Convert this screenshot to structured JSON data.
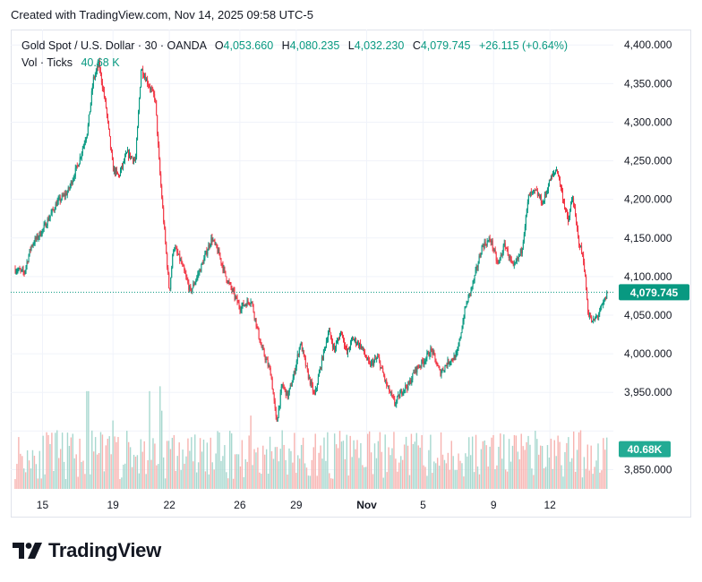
{
  "caption": "Created with TradingView.com, Nov 14, 2025 09:58 UTC-5",
  "legend": {
    "symbol": "Gold Spot / U.S. Dollar · 30 · OANDA",
    "open_label": "O",
    "open": "4,053.660",
    "high_label": "H",
    "high": "4,080.235",
    "low_label": "L",
    "low": "4,032.230",
    "close_label": "C",
    "close": "4,079.745",
    "change": "+26.115 (+0.64%)",
    "vol_label": "Vol · Ticks",
    "vol_value": "40.68 K"
  },
  "brand": {
    "name": "TradingView",
    "logo_icon": "tradingview-logo-icon"
  },
  "colors": {
    "up": "#089981",
    "down": "#f23645",
    "vol_up": "#a7d8cf",
    "vol_down": "#f7b3b0",
    "last_price_line": "#089981"
  },
  "chart_data": {
    "type": "candlestick",
    "instrument": "Gold Spot / U.S. Dollar",
    "timeframe": "30",
    "exchange": "OANDA",
    "y_axis": {
      "ylim": [
        3825,
        4420
      ],
      "ticks": [
        3850,
        3900,
        3950,
        4000,
        4050,
        4100,
        4150,
        4200,
        4250,
        4300,
        4350,
        4400
      ],
      "tick_labels": [
        "3,850.000",
        "",
        "3,950.000",
        "4,000.000",
        "4,050.000",
        "4,100.000",
        "4,150.000",
        "4,200.000",
        "4,250.000",
        "4,300.000",
        "4,350.000",
        "4,400.000"
      ]
    },
    "x_axis": {
      "tick_labels": [
        "15",
        "19",
        "22",
        "26",
        "29",
        "Nov",
        "5",
        "9",
        "12"
      ],
      "tick_positions": [
        2.0,
        7.0,
        11.0,
        16.0,
        20.0,
        25.0,
        29.0,
        34.0,
        38.0
      ],
      "bold": [
        "Nov"
      ],
      "range": [
        0,
        42.5
      ]
    },
    "price_path": {
      "t": [
        0,
        0.7,
        1.2,
        2.0,
        3.0,
        3.8,
        4.6,
        5.2,
        5.6,
        6.0,
        6.5,
        7.0,
        7.4,
        8.0,
        8.6,
        9.0,
        9.5,
        10.0,
        10.3,
        10.6,
        11.0,
        11.3,
        11.8,
        12.5,
        13.2,
        14.0,
        14.5,
        15.0,
        16.0,
        16.8,
        17.5,
        18.2,
        18.6,
        19.0,
        19.4,
        19.8,
        20.3,
        20.8,
        21.3,
        21.8,
        22.3,
        22.7,
        23.2,
        23.6,
        24.0,
        24.6,
        25.2,
        25.8,
        26.4,
        27.0,
        27.6,
        28.0,
        28.4,
        29.0,
        29.6,
        30.2,
        30.8,
        31.4,
        32.0,
        32.6,
        33.2,
        33.8,
        34.3,
        34.8,
        35.4,
        36.0,
        36.5,
        37.0,
        37.5,
        38.0,
        38.5,
        39.0,
        39.3,
        39.6,
        40.0,
        40.4,
        40.7,
        41.0,
        41.4,
        41.8,
        42.1
      ],
      "price": [
        4110,
        4105,
        4140,
        4160,
        4195,
        4210,
        4250,
        4290,
        4355,
        4375,
        4320,
        4240,
        4230,
        4260,
        4250,
        4370,
        4350,
        4330,
        4240,
        4170,
        4080,
        4140,
        4120,
        4080,
        4110,
        4150,
        4130,
        4100,
        4060,
        4070,
        4010,
        3975,
        3910,
        3960,
        3945,
        3970,
        4015,
        3975,
        3945,
        3990,
        4030,
        4005,
        4030,
        4000,
        4020,
        4010,
        3985,
        3995,
        3960,
        3935,
        3955,
        3960,
        3978,
        3990,
        4005,
        3975,
        3990,
        3998,
        4060,
        4095,
        4140,
        4148,
        4115,
        4142,
        4110,
        4135,
        4205,
        4210,
        4195,
        4225,
        4240,
        4195,
        4170,
        4205,
        4150,
        4120,
        4055,
        4040,
        4050,
        4065,
        4079.745
      ]
    },
    "last_price": 4079.745,
    "last_price_label": "4,079.745",
    "volume": {
      "name": "Vol · Ticks",
      "last_value": 40.68,
      "last_value_label": "40.68K",
      "scale_max": 120,
      "typical_range": [
        10,
        60
      ],
      "spikes": [
        [
          5.2,
          100
        ],
        [
          7.0,
          70
        ],
        [
          9.6,
          100
        ],
        [
          10.3,
          105
        ],
        [
          10.4,
          80
        ],
        [
          16.8,
          75
        ],
        [
          19.0,
          60
        ],
        [
          25.2,
          55
        ],
        [
          34.0,
          55
        ],
        [
          40.2,
          60
        ],
        [
          42.1,
          40.68
        ]
      ]
    }
  }
}
